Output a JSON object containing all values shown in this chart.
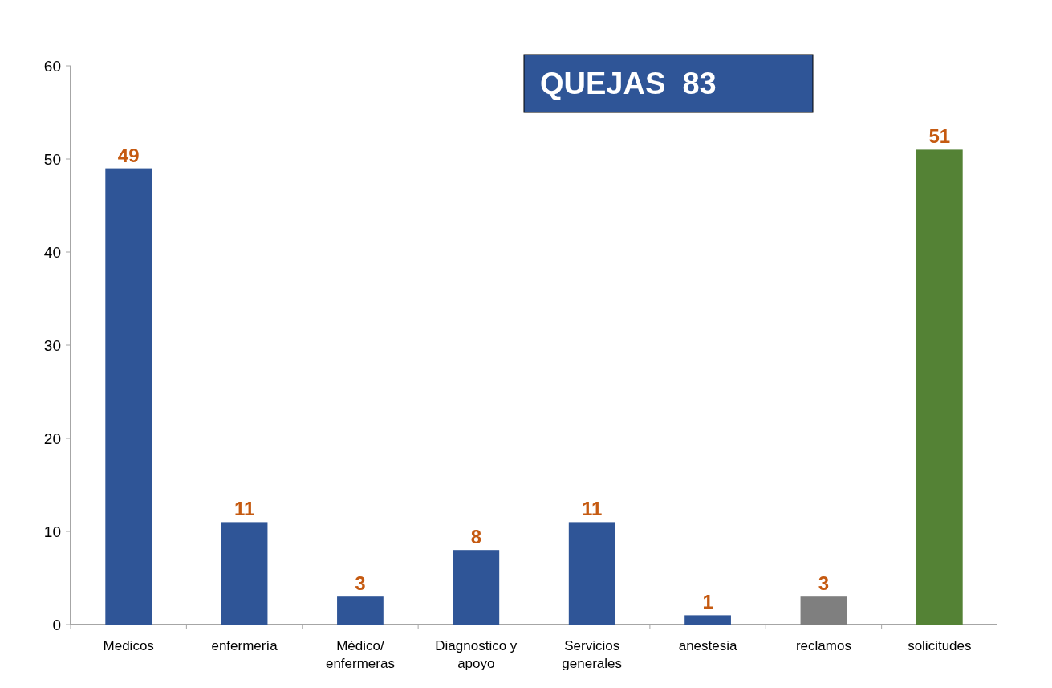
{
  "chart_data": {
    "type": "bar",
    "title": "QUEJAS  83",
    "categories": [
      "Medicos",
      "enfermería",
      "Médico/ enfermeras",
      "Diagnostico y apoyo",
      "Servicios generales",
      "anestesia",
      "reclamos",
      "solicitudes"
    ],
    "values": [
      49,
      11,
      3,
      8,
      11,
      1,
      3,
      51
    ],
    "colors": [
      "#2f5597",
      "#2f5597",
      "#2f5597",
      "#2f5597",
      "#2f5597",
      "#2f5597",
      "#7f7f7f",
      "#548235"
    ],
    "ylim": [
      0,
      60
    ],
    "yticks": [
      0,
      10,
      20,
      30,
      40,
      50,
      60
    ],
    "data_labels": true,
    "grid": false
  }
}
